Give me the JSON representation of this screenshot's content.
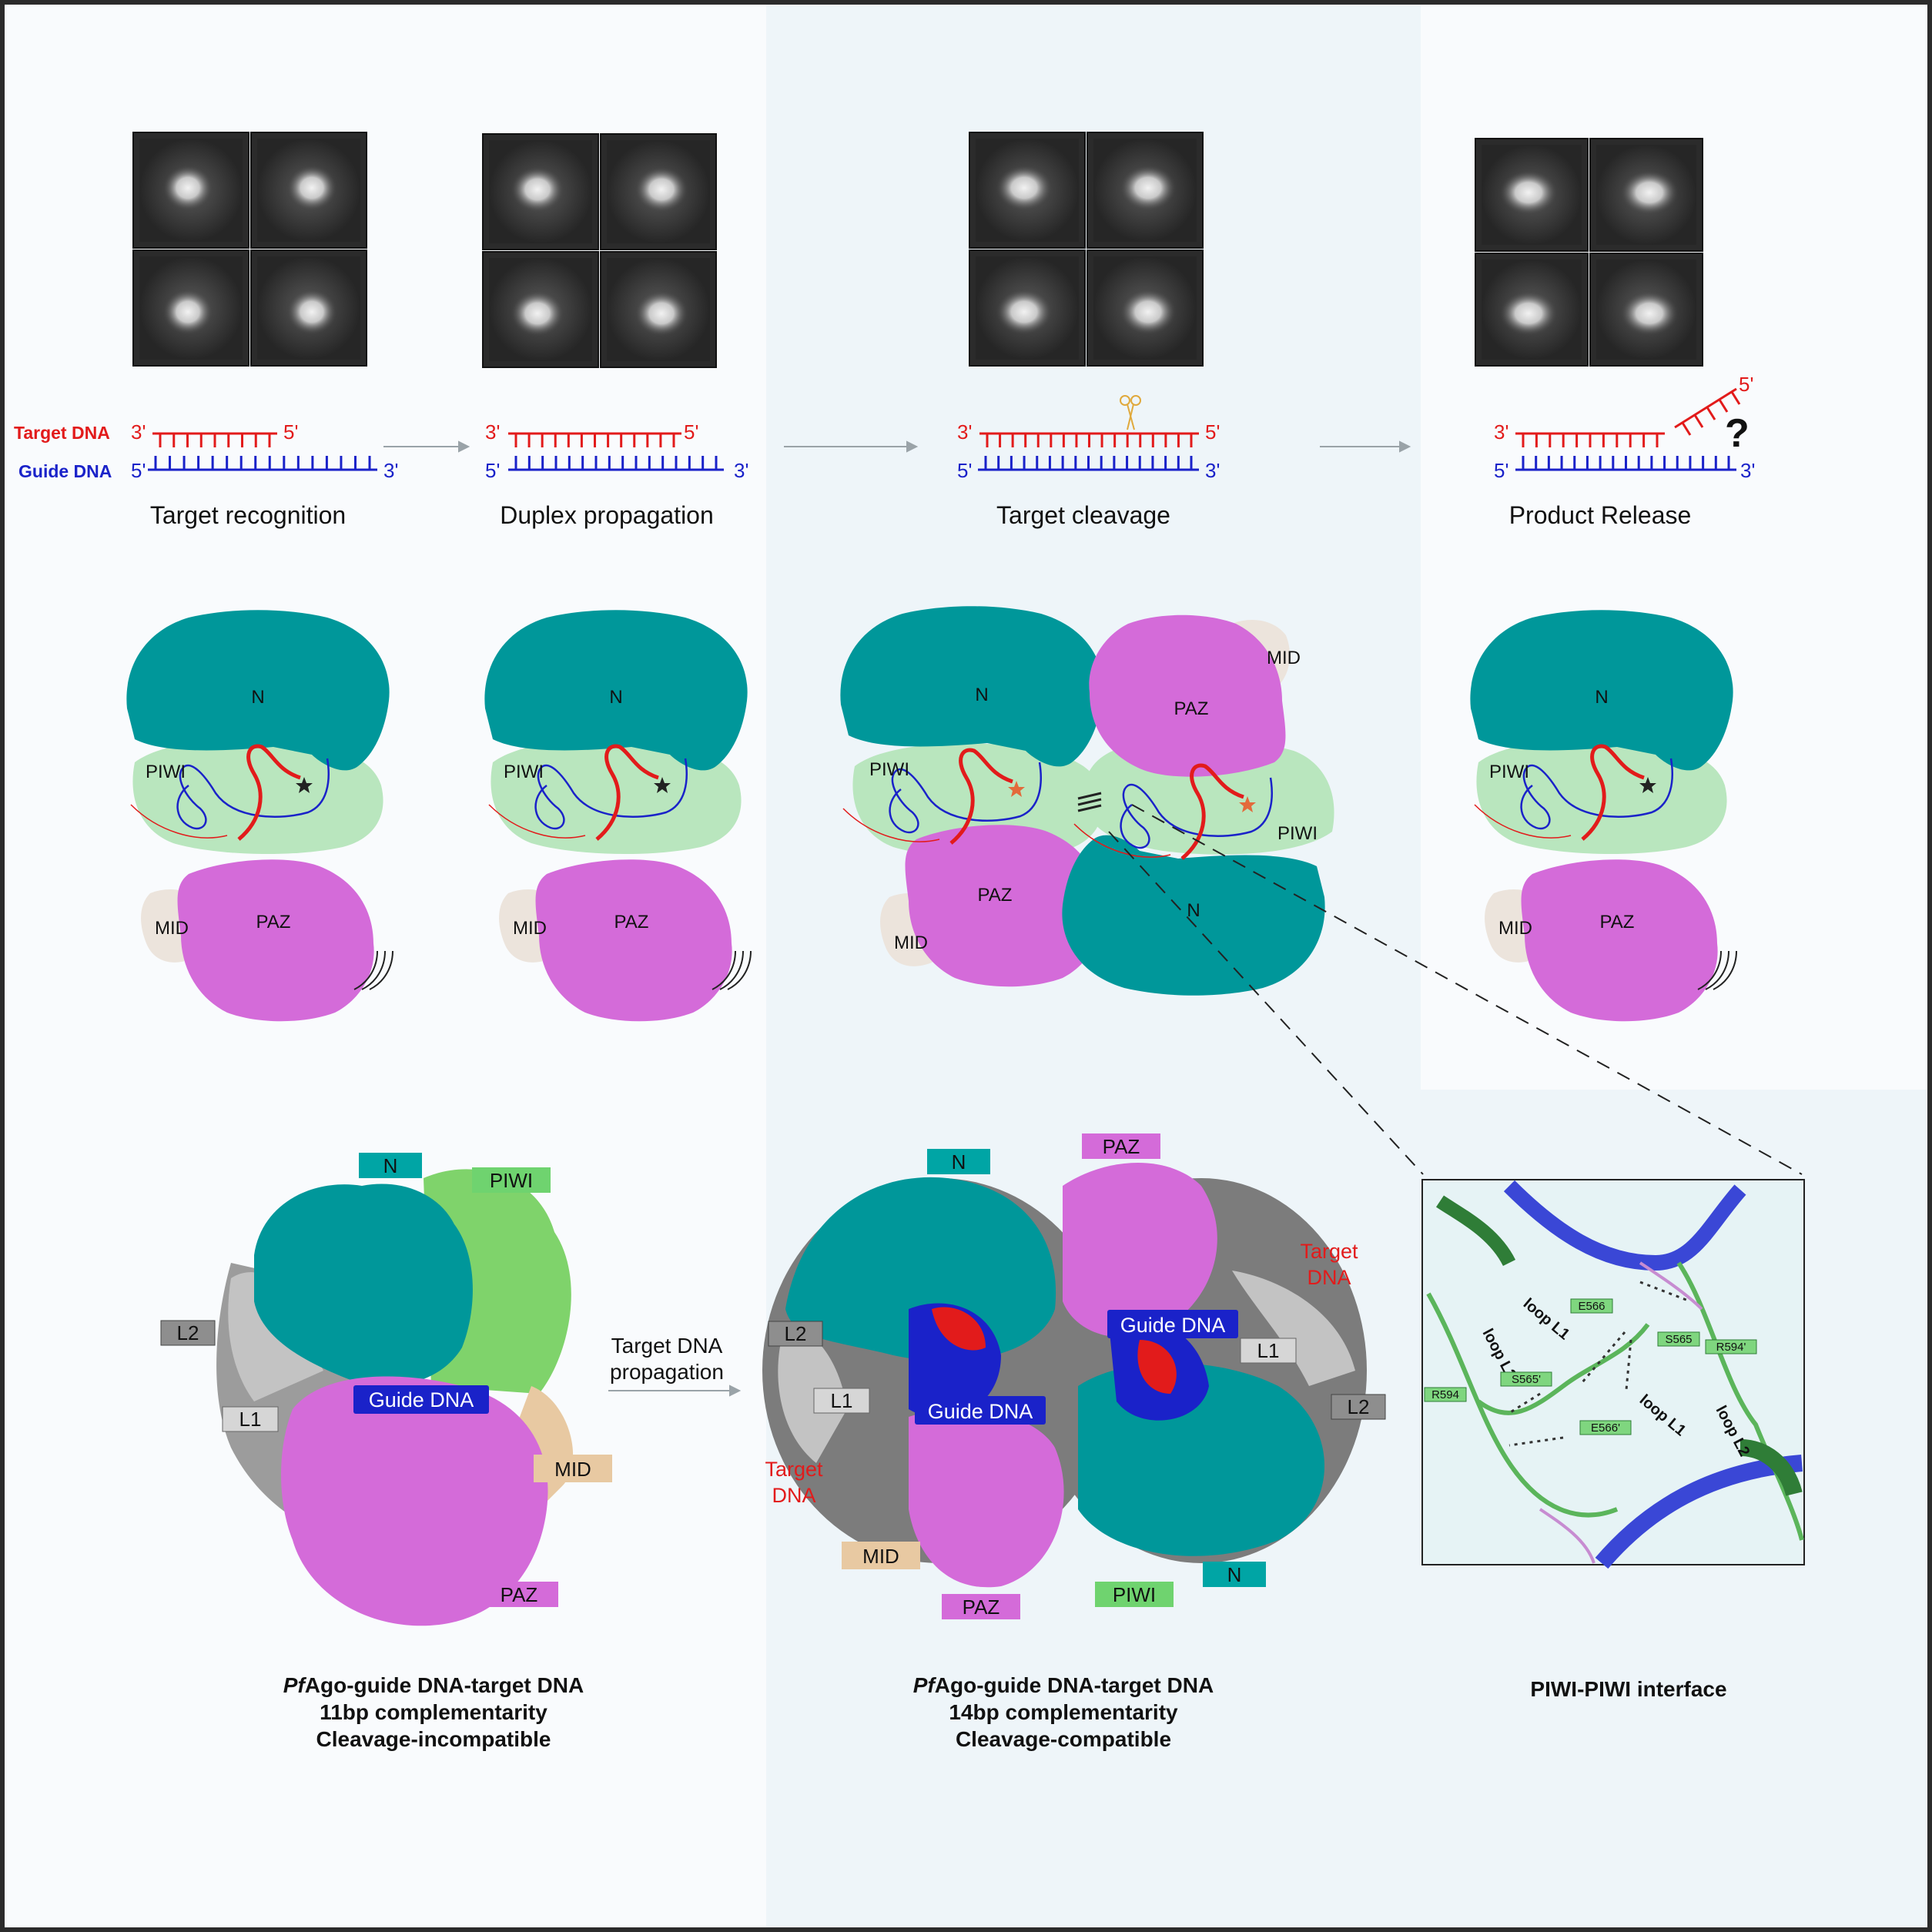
{
  "stages": [
    {
      "label": "Target recognition"
    },
    {
      "label": "Duplex propagation"
    },
    {
      "label": "Target cleavage"
    },
    {
      "label": "Product Release"
    }
  ],
  "strand_labels": {
    "target": "Target DNA",
    "guide": "Guide DNA",
    "three_prime": "3'",
    "five_prime": "5'",
    "question": "?"
  },
  "domains": {
    "n": "N",
    "piwi": "PIWI",
    "paz": "PAZ",
    "mid": "MID",
    "l1": "L1",
    "l2": "L2",
    "guide_dna": "Guide DNA",
    "target_dna_l1": "Target",
    "target_dna_l2": "DNA"
  },
  "transition_label": {
    "line1": "Target DNA",
    "line2": "propagation"
  },
  "captions": {
    "left": {
      "italic": "Pf",
      "line1_rest": "Ago-guide DNA-target DNA",
      "line2": "11bp complementarity",
      "line3": "Cleavage-incompatible"
    },
    "middle": {
      "italic": "Pf",
      "line1_rest": "Ago-guide DNA-target DNA",
      "line2": "14bp complementarity",
      "line3": "Cleavage-compatible"
    },
    "right": "PIWI-PIWI interface"
  },
  "interface": {
    "loop_l1": "loop L1",
    "loop_l2": "loop L2",
    "residues": [
      "E566",
      "S565",
      "R594'",
      "S565'",
      "E566'",
      "R594"
    ]
  },
  "colors": {
    "teal": "#00979a",
    "light_green": "#b9e6be",
    "magenta": "#d46bd9",
    "red": "#e21b1b",
    "blue": "#1a22c9",
    "grey": "#8e8e8e",
    "mid_tan": "#e8c9a2",
    "green_label": "#6fd36f",
    "panel_bg": "#eff6fa"
  }
}
